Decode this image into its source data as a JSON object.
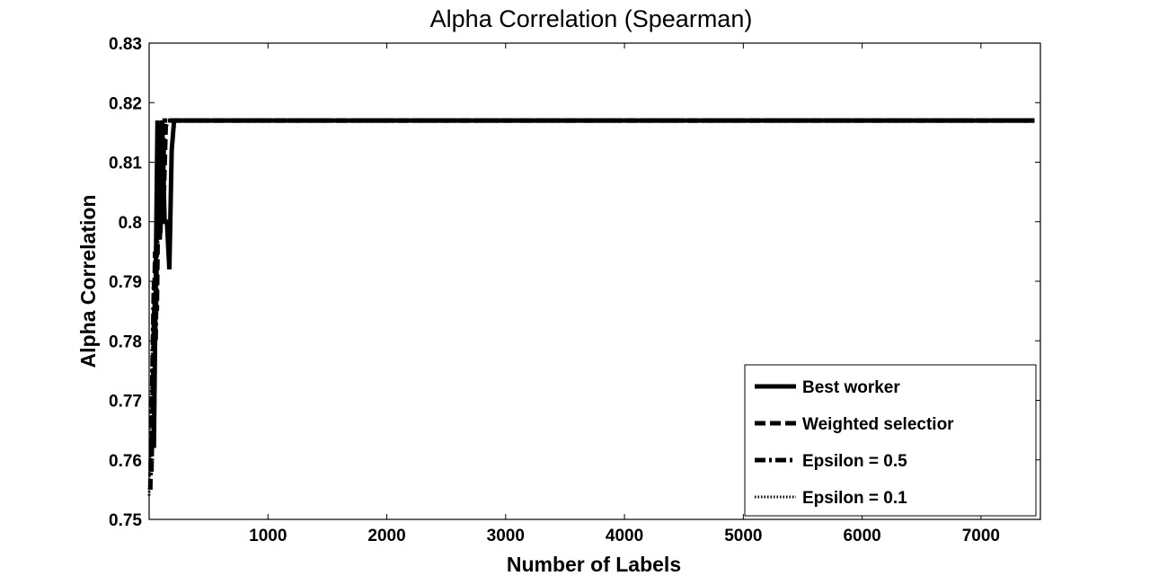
{
  "chart_data": {
    "type": "line",
    "title": "Alpha Correlation (Spearman)",
    "xlabel": "Number of Labels",
    "ylabel": "Alpha Correlation",
    "xlim": [
      0,
      7500
    ],
    "ylim": [
      0.75,
      0.83
    ],
    "xticks": [
      1000,
      2000,
      3000,
      4000,
      5000,
      6000,
      7000
    ],
    "xtick_labels": [
      "1000",
      "2000",
      "3000",
      "4000",
      "5000",
      "6000",
      "7000"
    ],
    "yticks": [
      0.75,
      0.76,
      0.77,
      0.78,
      0.79,
      0.8,
      0.81,
      0.82,
      0.83
    ],
    "ytick_labels": [
      "0.75",
      "0.76",
      "0.77",
      "0.78",
      "0.79",
      "0.8",
      "0.81",
      "0.82",
      "0.83"
    ],
    "grid": false,
    "legend_position": "bottom-right",
    "series": [
      {
        "name": "Best worker",
        "style": "solid",
        "x": [
          40,
          55,
          70,
          90,
          110,
          130,
          150,
          170,
          190,
          210,
          230,
          7450
        ],
        "y": [
          0.762,
          0.79,
          0.817,
          0.797,
          0.817,
          0.8,
          0.8,
          0.792,
          0.812,
          0.817,
          0.817,
          0.817
        ]
      },
      {
        "name": "Weighted selectior",
        "style": "dashed",
        "x": [
          20,
          35,
          50,
          65,
          80,
          95,
          110,
          125,
          140,
          155,
          7450
        ],
        "y": [
          0.758,
          0.775,
          0.795,
          0.785,
          0.81,
          0.798,
          0.815,
          0.805,
          0.816,
          0.817,
          0.817
        ]
      },
      {
        "name": "Epsilon = 0.5",
        "style": "dashdot",
        "x": [
          10,
          25,
          40,
          55,
          70,
          85,
          100,
          115,
          130,
          7450
        ],
        "y": [
          0.755,
          0.772,
          0.79,
          0.78,
          0.805,
          0.797,
          0.812,
          0.806,
          0.817,
          0.817
        ]
      },
      {
        "name": "Epsilon = 0.1",
        "style": "dotted",
        "x": [
          0,
          15,
          30,
          45,
          60,
          75,
          90,
          105,
          120,
          7450
        ],
        "y": [
          0.754,
          0.768,
          0.783,
          0.777,
          0.8,
          0.795,
          0.81,
          0.808,
          0.817,
          0.817
        ]
      }
    ]
  }
}
